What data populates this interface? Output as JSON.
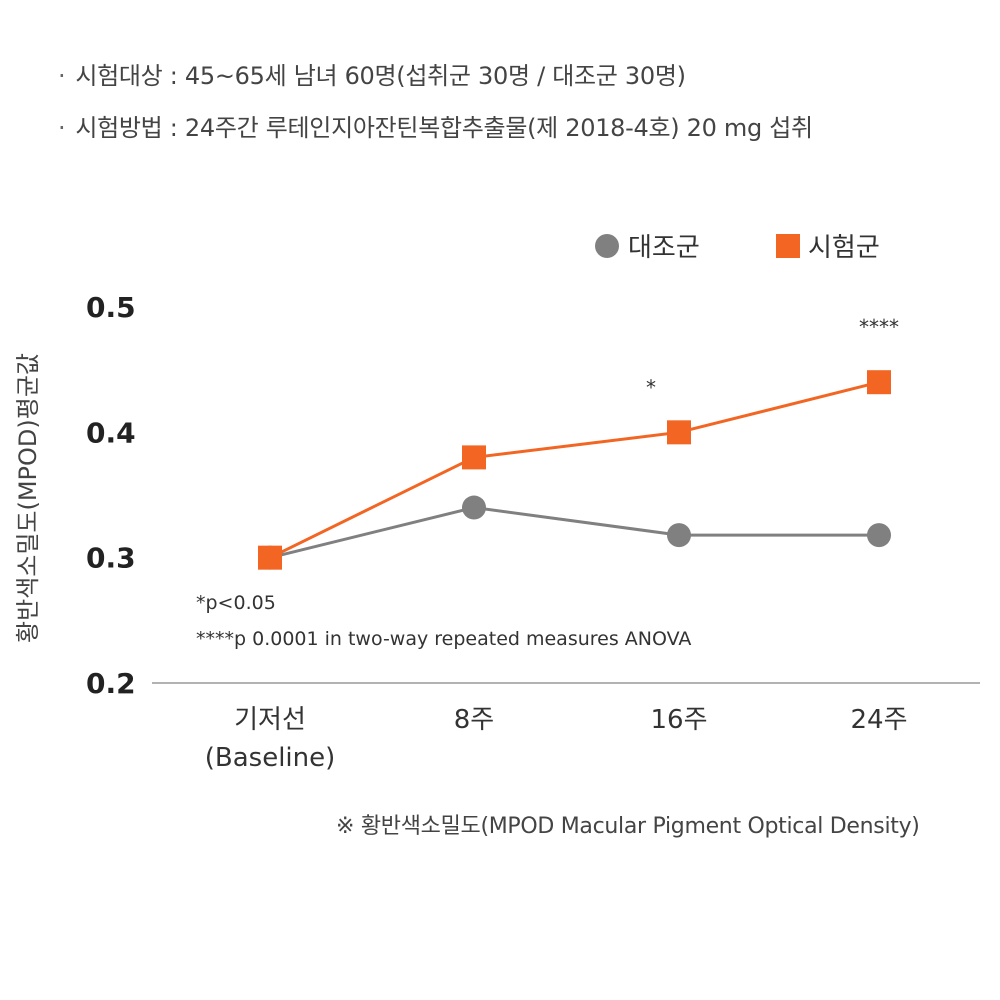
{
  "info": [
    {
      "bullet": "·",
      "text": "시험대상 : 45~65세 남녀 60명(섭취군 30명 / 대조군 30명)"
    },
    {
      "bullet": "·",
      "text": "시험방법 : 24주간 루테인지아잔틴복합추출물(제 2018-4호) 20 mg 섭취"
    }
  ],
  "footnote": "※ 황반색소밀도(MPOD Macular Pigment Optical Density)",
  "chart_data": {
    "type": "line",
    "categories": [
      "기저선",
      "8주",
      "16주",
      "24주"
    ],
    "category_sublabels": [
      "(Baseline)",
      "",
      "",
      ""
    ],
    "ylabel": "황반색소밀도(MPOD)평균값",
    "ylim": [
      0.2,
      0.5
    ],
    "yticks": [
      "0.5",
      "0.4",
      "0.3",
      "0.2"
    ],
    "legend_position": "top-right",
    "series": [
      {
        "name": "대조군",
        "values": [
          0.3,
          0.34,
          0.318,
          0.318
        ],
        "color": "#808080",
        "marker": "circle"
      },
      {
        "name": "시험군",
        "values": [
          0.3,
          0.38,
          0.4,
          0.44
        ],
        "color": "#F26522",
        "marker": "square"
      }
    ],
    "significance": [
      {
        "category_index": 2,
        "text": "*"
      },
      {
        "category_index": 3,
        "text": "****"
      }
    ],
    "notes": [
      "*p<0.05",
      "****p 0.0001 in two-way repeated measures ANOVA"
    ]
  }
}
